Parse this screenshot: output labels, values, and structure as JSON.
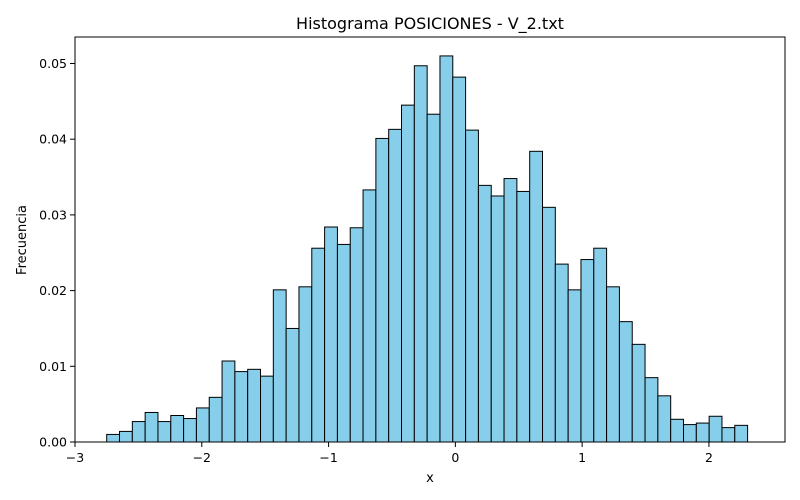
{
  "chart_data": {
    "type": "bar",
    "title": "Histograma POSICIONES - V_2.txt",
    "xlabel": "x",
    "ylabel": "Frecuencia",
    "xlim": [
      -3.0,
      2.6
    ],
    "ylim": [
      0,
      0.0535
    ],
    "x_ticks": [
      -3,
      -2,
      -1,
      0,
      1,
      2
    ],
    "x_tick_labels": [
      "−3",
      "−2",
      "−1",
      "0",
      "1",
      "2"
    ],
    "y_ticks": [
      0,
      0.01,
      0.02,
      0.03,
      0.04,
      0.05
    ],
    "y_tick_labels": [
      "0.00",
      "0.01",
      "0.02",
      "0.03",
      "0.04",
      "0.05"
    ],
    "grid": false,
    "legend": "none",
    "colors": {
      "bar_fill": "#87ceeb",
      "bar_edge": "#000000"
    },
    "bins": {
      "start": -2.75,
      "width": 0.1011,
      "values": [
        0.001,
        0.0014,
        0.0027,
        0.0039,
        0.0027,
        0.0035,
        0.0031,
        0.0045,
        0.0059,
        0.0107,
        0.0093,
        0.0096,
        0.0087,
        0.0201,
        0.015,
        0.0205,
        0.0256,
        0.0284,
        0.0261,
        0.0283,
        0.0333,
        0.0401,
        0.0413,
        0.0445,
        0.0497,
        0.0433,
        0.051,
        0.0482,
        0.0412,
        0.0339,
        0.0325,
        0.0348,
        0.0331,
        0.0384,
        0.031,
        0.0235,
        0.0201,
        0.0241,
        0.0256,
        0.0205,
        0.0159,
        0.0129,
        0.0085,
        0.0061,
        0.003,
        0.0023,
        0.0025,
        0.0034,
        0.0019,
        0.0022
      ]
    }
  }
}
